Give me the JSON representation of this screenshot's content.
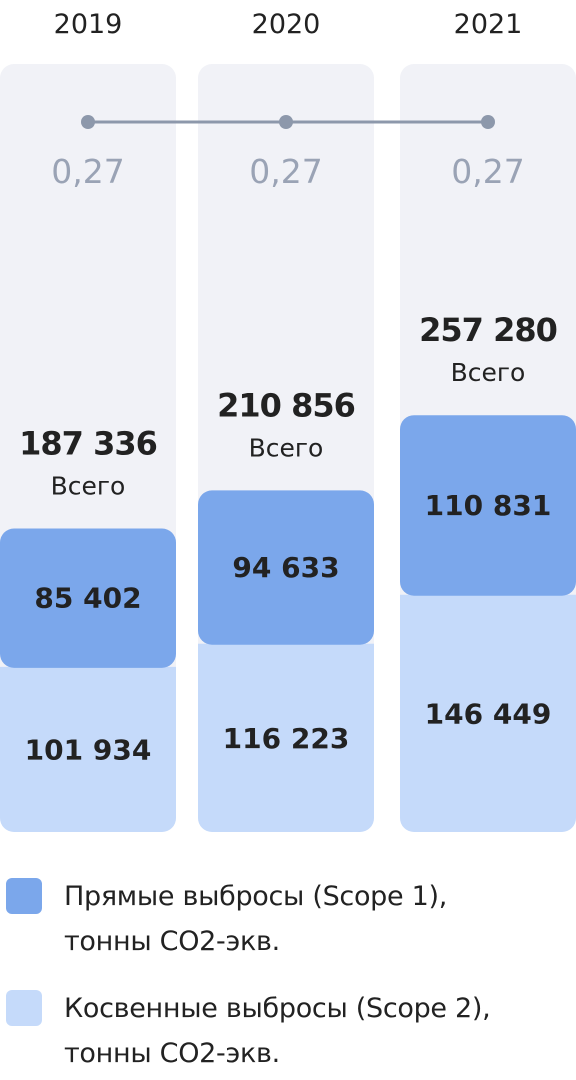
{
  "colors": {
    "track": "#F1F2F7",
    "scope1": "#7BA7EB",
    "scope2": "#C5DAFA",
    "intensity_line": "#8D98AB",
    "intensity_text": "#9AA3B5",
    "text": "#222222"
  },
  "chart_data": {
    "type": "bar",
    "stacked": true,
    "categories": [
      "2019",
      "2020",
      "2021"
    ],
    "series": [
      {
        "name": "Прямые выбросы (Scope 1),\nтонны CO2-экв.",
        "color": "#7BA7EB",
        "values": [
          85402,
          94633,
          110831
        ],
        "labels": [
          "85 402",
          "94 633",
          "110 831"
        ]
      },
      {
        "name": "Косвенные выбросы (Scope 2),\nтонны CO2-экв.",
        "color": "#C5DAFA",
        "values": [
          101934,
          116223,
          146449
        ],
        "labels": [
          "101 934",
          "116 223",
          "146 449"
        ]
      }
    ],
    "totals": [
      187336,
      210856,
      257280
    ],
    "total_labels": [
      "187 336",
      "210 856",
      "257 280"
    ],
    "total_caption": "Всего",
    "intensity": {
      "values": [
        0.27,
        0.27,
        0.27
      ],
      "labels": [
        "0,27",
        "0,27",
        "0,27"
      ]
    },
    "legend_position": "bottom"
  }
}
